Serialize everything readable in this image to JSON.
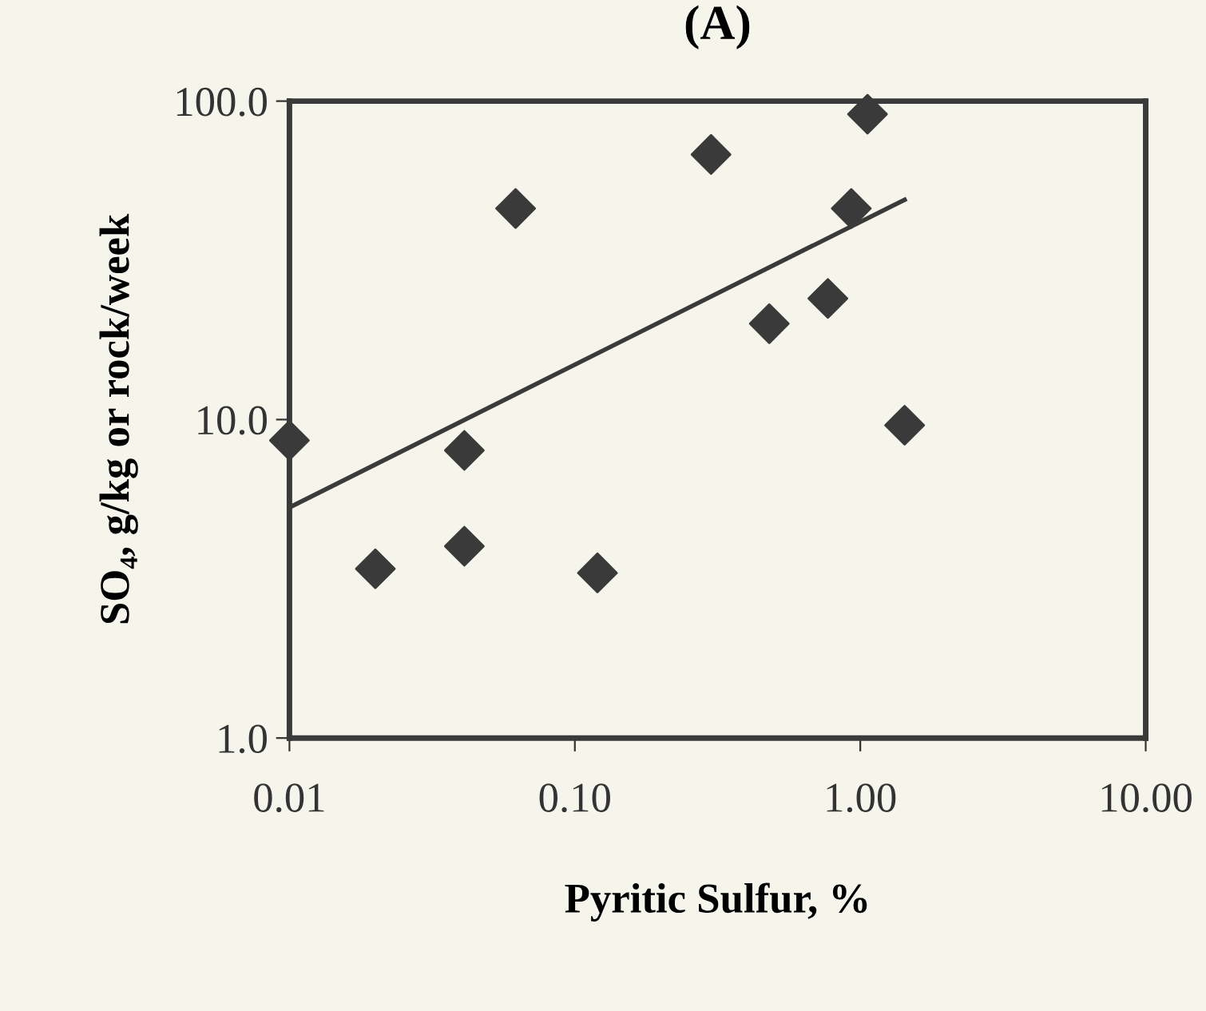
{
  "chart_data": {
    "type": "scatter",
    "title": "(A)",
    "xlabel": "Pyritic Sulfur, %",
    "ylabel": "SO₄, g/kg or rock/week",
    "log": "xy",
    "marker": "diamond",
    "grid": false,
    "legend": false,
    "xlim": [
      0.01,
      10
    ],
    "ylim": [
      1,
      100
    ],
    "xticks": [
      {
        "value": 0.01,
        "label": "0.01"
      },
      {
        "value": 0.1,
        "label": "0.10"
      },
      {
        "value": 1,
        "label": "1.00"
      },
      {
        "value": 10,
        "label": "10.00"
      }
    ],
    "yticks": [
      {
        "value": 1,
        "label": "1.0"
      },
      {
        "value": 10,
        "label": "10.0"
      },
      {
        "value": 100,
        "label": "100.0"
      }
    ],
    "series": [
      {
        "color": "#3a3a3a",
        "x": [
          0.01,
          0.02,
          0.041,
          0.041,
          0.062,
          0.12,
          0.3,
          0.48,
          0.77,
          0.93,
          1.06,
          1.43
        ],
        "values": [
          8.6,
          3.4,
          8.0,
          4.0,
          46,
          3.3,
          68,
          20,
          24,
          46,
          91,
          9.6
        ]
      },
      {
        "type": "line",
        "color": "#3a3a3a",
        "x": [
          0.01,
          1.43
        ],
        "values": [
          5.3,
          49
        ],
        "marker": "none"
      }
    ]
  }
}
